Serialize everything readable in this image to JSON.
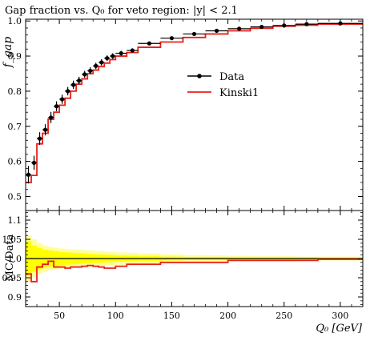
{
  "colors": {
    "data": "#000000",
    "mc": "#e8201a",
    "band_inner": "#ffff00",
    "band_outer": "#ffff99"
  },
  "chart_data": [
    {
      "type": "line",
      "title": "Gap fraction vs. Q₀ for veto region: |y| < 2.1",
      "ylabel": "f_gap",
      "xlim": [
        20,
        320
      ],
      "ylim": [
        0.46,
        1.005
      ],
      "ytick_labels": [
        "0.5",
        "0.6",
        "0.7",
        "0.8",
        "0.9",
        "1.0"
      ],
      "legend_position": "center-right",
      "legend": [
        "Data",
        "Kinski1"
      ],
      "bin_edges": [
        20,
        25,
        30,
        35,
        40,
        45,
        50,
        55,
        60,
        65,
        70,
        75,
        80,
        85,
        90,
        95,
        100,
        110,
        120,
        140,
        160,
        180,
        200,
        220,
        240,
        260,
        280,
        320
      ],
      "series": [
        {
          "name": "Data",
          "style": "points-with-errors",
          "points": [
            {
              "xmin": 20,
              "xmax": 25,
              "y": 0.562,
              "err": 0.025
            },
            {
              "xmin": 25,
              "xmax": 30,
              "y": 0.596,
              "err": 0.02
            },
            {
              "xmin": 30,
              "xmax": 35,
              "y": 0.665,
              "err": 0.018
            },
            {
              "xmin": 35,
              "xmax": 40,
              "y": 0.69,
              "err": 0.016
            },
            {
              "xmin": 40,
              "xmax": 45,
              "y": 0.725,
              "err": 0.016
            },
            {
              "xmin": 45,
              "xmax": 50,
              "y": 0.757,
              "err": 0.014
            },
            {
              "xmin": 50,
              "xmax": 55,
              "y": 0.777,
              "err": 0.013
            },
            {
              "xmin": 55,
              "xmax": 60,
              "y": 0.8,
              "err": 0.012
            },
            {
              "xmin": 60,
              "xmax": 65,
              "y": 0.818,
              "err": 0.012
            },
            {
              "xmin": 65,
              "xmax": 70,
              "y": 0.83,
              "err": 0.011
            },
            {
              "xmin": 70,
              "xmax": 75,
              "y": 0.848,
              "err": 0.01
            },
            {
              "xmin": 75,
              "xmax": 80,
              "y": 0.858,
              "err": 0.01
            },
            {
              "xmin": 80,
              "xmax": 85,
              "y": 0.872,
              "err": 0.009
            },
            {
              "xmin": 85,
              "xmax": 90,
              "y": 0.882,
              "err": 0.009
            },
            {
              "xmin": 90,
              "xmax": 95,
              "y": 0.894,
              "err": 0.008
            },
            {
              "xmin": 95,
              "xmax": 100,
              "y": 0.9,
              "err": 0.008
            },
            {
              "xmin": 100,
              "xmax": 110,
              "y": 0.908,
              "err": 0.007
            },
            {
              "xmin": 110,
              "xmax": 120,
              "y": 0.916,
              "err": 0.006
            },
            {
              "xmin": 120,
              "xmax": 140,
              "y": 0.936,
              "err": 0.005
            },
            {
              "xmin": 140,
              "xmax": 160,
              "y": 0.951,
              "err": 0.005
            },
            {
              "xmin": 160,
              "xmax": 180,
              "y": 0.963,
              "err": 0.004
            },
            {
              "xmin": 180,
              "xmax": 200,
              "y": 0.972,
              "err": 0.004
            },
            {
              "xmin": 200,
              "xmax": 220,
              "y": 0.978,
              "err": 0.003
            },
            {
              "xmin": 220,
              "xmax": 240,
              "y": 0.983,
              "err": 0.003
            },
            {
              "xmin": 240,
              "xmax": 260,
              "y": 0.987,
              "err": 0.003
            },
            {
              "xmin": 260,
              "xmax": 280,
              "y": 0.991,
              "err": 0.003
            },
            {
              "xmin": 280,
              "xmax": 320,
              "y": 0.993,
              "err": 0.002
            }
          ]
        },
        {
          "name": "Kinski1",
          "style": "step",
          "values": [
            0.54,
            0.56,
            0.65,
            0.68,
            0.72,
            0.74,
            0.76,
            0.78,
            0.8,
            0.82,
            0.835,
            0.85,
            0.86,
            0.87,
            0.88,
            0.89,
            0.9,
            0.91,
            0.925,
            0.94,
            0.953,
            0.963,
            0.972,
            0.979,
            0.985,
            0.988,
            0.991
          ]
        }
      ]
    },
    {
      "type": "line",
      "ylabel": "MC/Data",
      "xlabel": "Q₀ [GeV]",
      "xlim": [
        20,
        320
      ],
      "ylim": [
        0.875,
        1.125
      ],
      "xtick_labels": [
        "50",
        "100",
        "150",
        "200",
        "250",
        "300"
      ],
      "ytick_labels": [
        "0.9",
        "0.95",
        "1.0",
        "1.05",
        "1.1"
      ],
      "reference_line": 1.0,
      "bands": {
        "outer": [
          0.06,
          0.05,
          0.04,
          0.034,
          0.03,
          0.028,
          0.026,
          0.025,
          0.024,
          0.023,
          0.022,
          0.021,
          0.02,
          0.019,
          0.018,
          0.017,
          0.016,
          0.015,
          0.013,
          0.011,
          0.009,
          0.008,
          0.007,
          0.006,
          0.006,
          0.005,
          0.005
        ],
        "inner": [
          0.045,
          0.034,
          0.027,
          0.023,
          0.021,
          0.019,
          0.017,
          0.016,
          0.015,
          0.014,
          0.013,
          0.012,
          0.011,
          0.011,
          0.01,
          0.009,
          0.008,
          0.007,
          0.006,
          0.005,
          0.004,
          0.004,
          0.003,
          0.003,
          0.003,
          0.003,
          0.002
        ]
      },
      "series": [
        {
          "name": "Kinski1",
          "style": "step",
          "values": [
            0.96,
            0.94,
            0.978,
            0.985,
            0.993,
            0.978,
            0.978,
            0.975,
            0.978,
            0.978,
            0.98,
            0.982,
            0.98,
            0.978,
            0.975,
            0.975,
            0.98,
            0.985,
            0.985,
            0.99,
            0.99,
            0.99,
            0.995,
            0.995,
            0.995,
            0.995,
            0.998
          ]
        }
      ]
    }
  ]
}
